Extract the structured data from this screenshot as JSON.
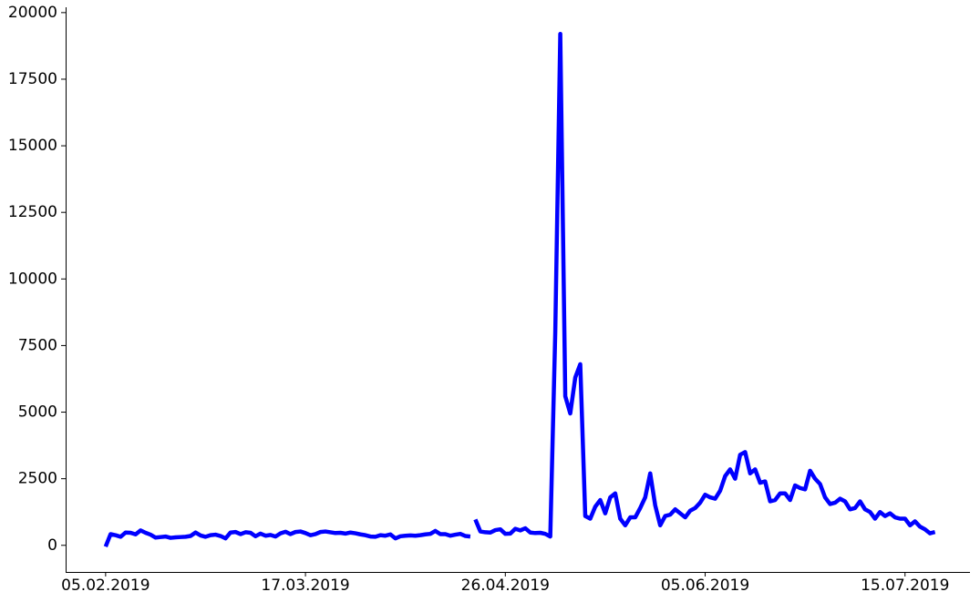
{
  "chart_data": {
    "type": "line",
    "title": "",
    "xlabel": "",
    "ylabel": "",
    "x_axis": "date",
    "x_ticks": [
      "05.02.2019",
      "17.03.2019",
      "26.04.2019",
      "05.06.2019",
      "15.07.2019"
    ],
    "x_range": [
      "28.01.2019",
      "28.07.2019"
    ],
    "y_ticks": [
      0,
      2500,
      5000,
      7500,
      10000,
      12500,
      15000,
      17500,
      20000
    ],
    "ylim": [
      -1000,
      20200
    ],
    "grid": false,
    "legend": "none",
    "colors": {
      "line": "#0000ff",
      "axes": "#000000"
    },
    "series": [
      {
        "segments": [
          {
            "start_date": "05.02.2019",
            "values": [
              -50,
              420,
              380,
              320,
              480,
              470,
              410,
              560,
              470,
              400,
              290,
              310,
              330,
              280,
              300,
              310,
              320,
              350,
              480,
              370,
              320,
              380,
              400,
              350,
              260,
              480,
              500,
              420,
              490,
              470,
              340,
              440,
              360,
              390,
              330,
              450,
              510,
              420,
              500,
              520,
              460,
              380,
              420,
              500,
              520,
              490,
              460,
              470,
              440,
              480,
              450,
              410,
              380,
              330,
              320,
              380,
              360,
              410,
              260,
              340,
              360,
              370,
              360,
              380,
              410,
              430,
              540,
              420,
              420,
              360,
              400,
              430,
              350,
              330
            ]
          },
          {
            "start_date": "20.04.2019",
            "values": [
              970,
              520,
              490,
              480,
              570,
              600,
              430,
              440,
              620,
              560,
              640,
              480,
              460,
              470,
              430,
              330,
              8000,
              19200,
              5600,
              4950,
              6300,
              6800,
              1100,
              1000,
              1450,
              1700,
              1200,
              1800,
              1950,
              1000,
              750,
              1050,
              1050,
              1400,
              1800,
              2700,
              1500,
              750,
              1100,
              1150,
              1350,
              1200,
              1050,
              1300,
              1400,
              1600,
              1900,
              1800,
              1750,
              2050,
              2600,
              2850,
              2500,
              3400,
              3500,
              2700,
              2850,
              2350,
              2400,
              1650,
              1700,
              1950,
              1950,
              1700,
              2250,
              2150,
              2100,
              2800,
              2500,
              2300,
              1800,
              1550,
              1600,
              1750,
              1650,
              1350,
              1400,
              1650,
              1350,
              1250,
              1000,
              1250,
              1100,
              1200,
              1050,
              1000,
              1000,
              750,
              900,
              700,
              600,
              450,
              500
            ]
          }
        ]
      }
    ]
  }
}
